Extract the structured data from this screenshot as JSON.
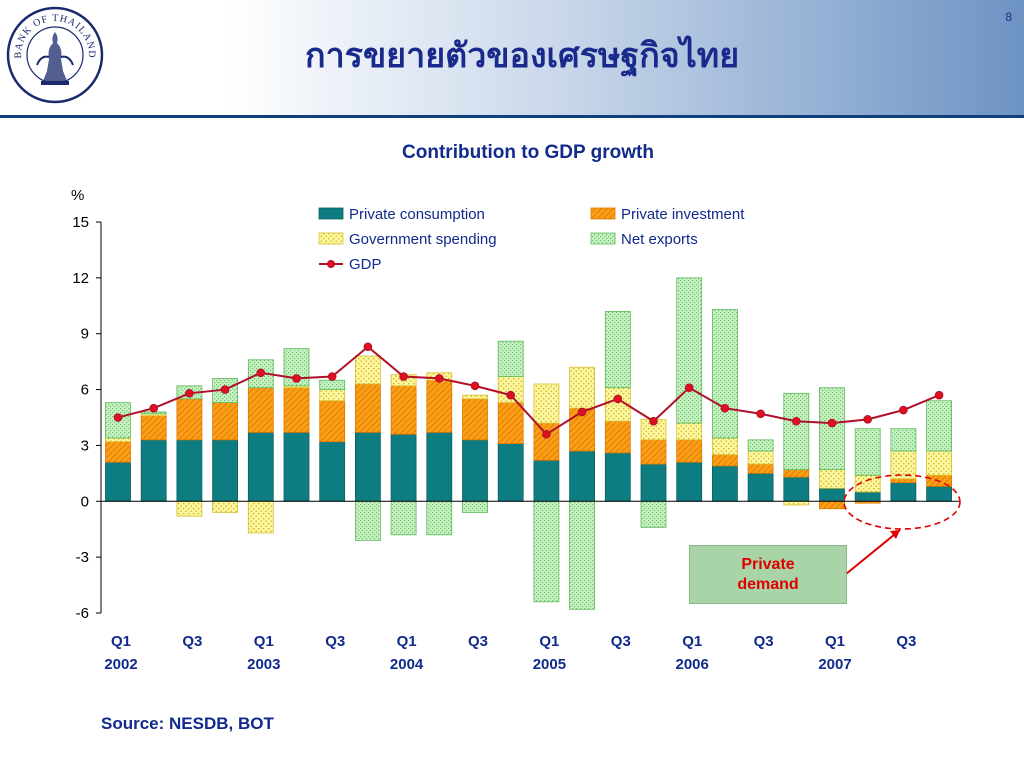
{
  "page": {
    "number": "8",
    "title": "การขยายตัวของเศรษฐกิจไทย"
  },
  "logo": {
    "text": "BANK OF THAILAND"
  },
  "source": "Source:  NESDB, BOT",
  "callout": {
    "text": "Private demand"
  },
  "colors": {
    "pc": "#0e7d82",
    "pi": "#f5a31a",
    "gs": "#fbf38a",
    "nx": "#b6ecb0",
    "gdp": "#b0102a",
    "title": "#112a8c",
    "accent_red": "#e00000"
  },
  "chart_data": {
    "type": "bar",
    "title": "Contribution to GDP growth",
    "ylabel": "%",
    "ylim": [
      -6,
      15
    ],
    "yticks": [
      -6,
      -3,
      0,
      3,
      6,
      9,
      12,
      15
    ],
    "stacked": true,
    "legend_position": "top-right",
    "x_tick_labels": [
      {
        "q": "Q1",
        "year": "2002"
      },
      {
        "q": "Q3",
        "year": ""
      },
      {
        "q": "Q1",
        "year": "2003"
      },
      {
        "q": "Q3",
        "year": ""
      },
      {
        "q": "Q1",
        "year": "2004"
      },
      {
        "q": "Q3",
        "year": ""
      },
      {
        "q": "Q1",
        "year": "2005"
      },
      {
        "q": "Q3",
        "year": ""
      },
      {
        "q": "Q1",
        "year": "2006"
      },
      {
        "q": "Q3",
        "year": ""
      },
      {
        "q": "Q1",
        "year": "2007"
      },
      {
        "q": "Q3",
        "year": ""
      }
    ],
    "series": [
      {
        "name": "Private consumption",
        "values": [
          2.1,
          3.3,
          3.3,
          3.3,
          3.7,
          3.7,
          3.2,
          3.7,
          3.6,
          3.7,
          3.3,
          3.1,
          2.2,
          2.7,
          2.6,
          2.0,
          2.1,
          1.9,
          1.5,
          1.3,
          0.7,
          0.5,
          1.0,
          0.8
        ]
      },
      {
        "name": "Private investment",
        "values": [
          1.1,
          1.3,
          2.2,
          2.0,
          2.4,
          2.4,
          2.2,
          2.6,
          2.6,
          2.8,
          2.2,
          2.2,
          2.0,
          2.3,
          1.7,
          1.3,
          1.2,
          0.6,
          0.5,
          0.4,
          -0.4,
          -0.1,
          0.2,
          0.6
        ]
      },
      {
        "name": "Government spending",
        "values": [
          0.2,
          0.1,
          -0.8,
          -0.6,
          -1.7,
          0.1,
          0.6,
          1.5,
          0.6,
          0.4,
          0.2,
          1.4,
          2.1,
          2.2,
          1.8,
          1.1,
          0.9,
          0.9,
          0.7,
          -0.2,
          1.0,
          0.9,
          1.5,
          1.3
        ]
      },
      {
        "name": "Net exports",
        "values": [
          1.9,
          0.1,
          0.7,
          1.3,
          1.5,
          2.0,
          0.5,
          -2.1,
          -1.8,
          -1.8,
          -0.6,
          1.9,
          -5.4,
          -5.8,
          4.1,
          -1.4,
          7.8,
          6.9,
          0.6,
          4.1,
          4.4,
          2.5,
          1.2,
          2.7
        ]
      },
      {
        "name": "GDP",
        "type": "line",
        "values": [
          4.5,
          5.0,
          5.8,
          6.0,
          6.9,
          6.6,
          6.7,
          8.3,
          6.7,
          6.6,
          6.2,
          5.7,
          3.6,
          4.8,
          5.5,
          4.3,
          6.1,
          5.0,
          4.7,
          4.3,
          4.2,
          4.4,
          4.9,
          5.7
        ]
      }
    ]
  }
}
